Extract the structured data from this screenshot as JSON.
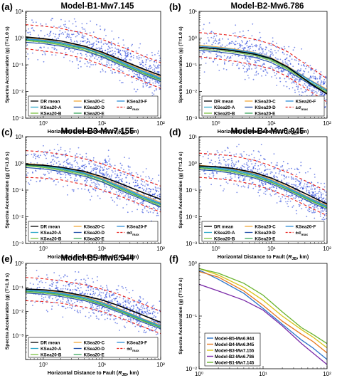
{
  "figure": {
    "panels": [
      {
        "tag": "(a)",
        "title": "Model-B1-Mw7.145"
      },
      {
        "tag": "(b)",
        "title": "Model-B2-Mw6.786"
      },
      {
        "tag": "(c)",
        "title": "Model-B3-Mw7.155"
      },
      {
        "tag": "(d)",
        "title": "Model-B4-Mw6.945"
      },
      {
        "tag": "(e)",
        "title": "Model-B5-Mw6.944"
      },
      {
        "tag": "(f)",
        "title": ""
      }
    ],
    "ylabel": "Spectra Acceleration (g) (T=1.0 s)",
    "xlabel_pre": "Horizontal Distance to Fault (",
    "xlabel_R": "R",
    "xlabel_sub": "JB",
    "xlabel_post": ", km)",
    "legend_entries": [
      "DR mean",
      "KSea20-C",
      "KSea20-F",
      "KSea20-A",
      "KSea20-D",
      "±σ",
      "KSea20-B",
      "KSea20-E"
    ],
    "sigma_sub": "max",
    "legend_f": [
      "Model-B5-Mw6.944",
      "Model-B4-Mw6.945",
      "Model-B3-Mw7.155",
      "Model-B2-Mw6.786",
      "Model-B1-Mw7.145"
    ],
    "y_ticks": [
      "10⁰",
      "10⁻¹",
      "10⁻²",
      "10⁻³"
    ],
    "y_ticks_abc": [
      "10¹",
      "10⁰",
      "10⁻¹",
      "10⁻²",
      "10⁻³"
    ],
    "x_ticks": [
      "10⁰",
      "10¹",
      "10²"
    ]
  },
  "colors": {
    "scatter": "#0b2bd6",
    "dr_mean": "#000000",
    "ksea_a": "#2da8c8",
    "ksea_b": "#7cc242",
    "ksea_c": "#f2a93b",
    "ksea_d": "#1f4fa8",
    "ksea_e": "#3aa85c",
    "ksea_f": "#2f8fd8",
    "sigma": "#e8201c",
    "f_b5": "#2b73c9",
    "f_b4": "#e8781c",
    "f_b3": "#d9c31a",
    "f_b2": "#7a2aa8",
    "f_b1": "#6ab32e"
  },
  "chart_data": [
    {
      "panel": "a",
      "type": "scatter",
      "title": "Model-B1-Mw7.145",
      "x_scale": "log",
      "y_scale": "log",
      "xlim": [
        0.5,
        100
      ],
      "ylim": [
        0.001,
        10
      ],
      "dr_mean": {
        "x": [
          0.5,
          1,
          2,
          5,
          10,
          20,
          50,
          100
        ],
        "y": [
          1.1,
          0.95,
          0.78,
          0.5,
          0.3,
          0.16,
          0.07,
          0.04
        ]
      },
      "sigma_upper": {
        "x": [
          0.5,
          1,
          2,
          5,
          10,
          20,
          50,
          100
        ],
        "y": [
          3.2,
          2.8,
          2.3,
          1.5,
          0.9,
          0.5,
          0.22,
          0.12
        ]
      },
      "sigma_lower": {
        "x": [
          0.5,
          1,
          2,
          5,
          10,
          20,
          50,
          100
        ],
        "y": [
          0.4,
          0.33,
          0.27,
          0.17,
          0.1,
          0.055,
          0.024,
          0.013
        ]
      },
      "gmm": [
        {
          "name": "KSea20-A",
          "y": [
            0.9,
            0.8,
            0.65,
            0.42,
            0.25,
            0.13,
            0.055,
            0.03
          ]
        },
        {
          "name": "KSea20-B",
          "y": [
            0.8,
            0.7,
            0.55,
            0.36,
            0.21,
            0.11,
            0.047,
            0.025
          ]
        },
        {
          "name": "KSea20-C",
          "y": [
            1.0,
            0.88,
            0.7,
            0.46,
            0.28,
            0.15,
            0.063,
            0.035
          ]
        },
        {
          "name": "KSea20-D",
          "y": [
            0.7,
            0.62,
            0.5,
            0.33,
            0.2,
            0.1,
            0.043,
            0.023
          ]
        },
        {
          "name": "KSea20-E",
          "y": [
            0.85,
            0.75,
            0.6,
            0.4,
            0.24,
            0.12,
            0.05,
            0.028
          ]
        },
        {
          "name": "KSea20-F",
          "y": [
            0.95,
            0.84,
            0.68,
            0.44,
            0.26,
            0.14,
            0.058,
            0.032
          ]
        }
      ]
    },
    {
      "panel": "b",
      "type": "scatter",
      "title": "Model-B2-Mw6.786",
      "x_scale": "log",
      "y_scale": "log",
      "xlim": [
        0.5,
        100
      ],
      "ylim": [
        0.001,
        10
      ],
      "dr_mean": {
        "x": [
          0.5,
          1,
          2,
          5,
          10,
          20,
          50,
          100
        ],
        "y": [
          0.45,
          0.4,
          0.34,
          0.25,
          0.17,
          0.08,
          0.02,
          0.008
        ]
      },
      "sigma_upper": {
        "x": [
          0.5,
          1,
          2,
          5,
          10,
          20,
          50,
          100
        ],
        "y": [
          1.6,
          1.45,
          1.25,
          0.9,
          0.6,
          0.3,
          0.08,
          0.03
        ]
      },
      "sigma_lower": {
        "x": [
          0.5,
          1,
          2,
          5,
          10,
          20,
          50,
          100
        ],
        "y": [
          0.2,
          0.17,
          0.14,
          0.1,
          0.07,
          0.035,
          0.01,
          0.004
        ]
      },
      "gmm": [
        {
          "name": "KSea20-A",
          "y": [
            0.5,
            0.44,
            0.37,
            0.27,
            0.17,
            0.08,
            0.025,
            0.011
          ]
        },
        {
          "name": "KSea20-B",
          "y": [
            0.4,
            0.35,
            0.3,
            0.22,
            0.14,
            0.065,
            0.02,
            0.009
          ]
        },
        {
          "name": "KSea20-C",
          "y": [
            0.55,
            0.48,
            0.4,
            0.29,
            0.18,
            0.085,
            0.027,
            0.012
          ]
        },
        {
          "name": "KSea20-D",
          "y": [
            0.35,
            0.31,
            0.26,
            0.19,
            0.12,
            0.058,
            0.018,
            0.008
          ]
        },
        {
          "name": "KSea20-E",
          "y": [
            0.45,
            0.4,
            0.33,
            0.24,
            0.155,
            0.072,
            0.022,
            0.01
          ]
        },
        {
          "name": "KSea20-F",
          "y": [
            0.5,
            0.45,
            0.38,
            0.28,
            0.175,
            0.082,
            0.026,
            0.011
          ]
        }
      ]
    },
    {
      "panel": "c",
      "type": "scatter",
      "title": "Model-B3-Mw7.155",
      "x_scale": "log",
      "y_scale": "log",
      "xlim": [
        0.5,
        100
      ],
      "ylim": [
        0.001,
        10
      ],
      "dr_mean": {
        "x": [
          0.5,
          1,
          2,
          5,
          10,
          20,
          50,
          100
        ],
        "y": [
          0.9,
          0.85,
          0.72,
          0.5,
          0.32,
          0.18,
          0.08,
          0.045
        ]
      },
      "sigma_upper": {
        "x": [
          0.5,
          1,
          2,
          5,
          10,
          20,
          50,
          100
        ],
        "y": [
          3.0,
          2.7,
          2.2,
          1.5,
          0.95,
          0.55,
          0.25,
          0.14
        ]
      },
      "sigma_lower": {
        "x": [
          0.5,
          1,
          2,
          5,
          10,
          20,
          50,
          100
        ],
        "y": [
          0.3,
          0.28,
          0.24,
          0.16,
          0.1,
          0.06,
          0.027,
          0.015
        ]
      },
      "gmm": [
        {
          "name": "KSea20-A",
          "y": [
            0.9,
            0.8,
            0.65,
            0.42,
            0.25,
            0.13,
            0.055,
            0.03
          ]
        },
        {
          "name": "KSea20-B",
          "y": [
            0.8,
            0.7,
            0.55,
            0.36,
            0.21,
            0.11,
            0.047,
            0.025
          ]
        },
        {
          "name": "KSea20-C",
          "y": [
            1.0,
            0.88,
            0.7,
            0.46,
            0.28,
            0.15,
            0.063,
            0.035
          ]
        },
        {
          "name": "KSea20-D",
          "y": [
            0.7,
            0.62,
            0.5,
            0.33,
            0.2,
            0.1,
            0.043,
            0.023
          ]
        },
        {
          "name": "KSea20-E",
          "y": [
            0.85,
            0.75,
            0.6,
            0.4,
            0.24,
            0.12,
            0.05,
            0.028
          ]
        },
        {
          "name": "KSea20-F",
          "y": [
            0.95,
            0.84,
            0.68,
            0.44,
            0.26,
            0.14,
            0.058,
            0.032
          ]
        }
      ]
    },
    {
      "panel": "d",
      "type": "scatter",
      "title": "Model-B4-Mw6.945",
      "x_scale": "log",
      "y_scale": "log",
      "xlim": [
        0.5,
        100
      ],
      "ylim": [
        0.001,
        10
      ],
      "dr_mean": {
        "x": [
          0.5,
          1,
          2,
          5,
          10,
          20,
          50,
          100
        ],
        "y": [
          0.8,
          0.75,
          0.65,
          0.45,
          0.28,
          0.15,
          0.06,
          0.03
        ]
      },
      "sigma_upper": {
        "x": [
          0.5,
          1,
          2,
          5,
          10,
          20,
          50,
          100
        ],
        "y": [
          2.4,
          2.2,
          1.9,
          1.3,
          0.8,
          0.45,
          0.18,
          0.09
        ]
      },
      "sigma_lower": {
        "x": [
          0.5,
          1,
          2,
          5,
          10,
          20,
          50,
          100
        ],
        "y": [
          0.3,
          0.27,
          0.23,
          0.16,
          0.1,
          0.055,
          0.022,
          0.011
        ]
      },
      "gmm": [
        {
          "name": "KSea20-A",
          "y": [
            0.75,
            0.67,
            0.55,
            0.37,
            0.22,
            0.115,
            0.045,
            0.024
          ]
        },
        {
          "name": "KSea20-B",
          "y": [
            0.65,
            0.58,
            0.47,
            0.31,
            0.19,
            0.1,
            0.039,
            0.021
          ]
        },
        {
          "name": "KSea20-C",
          "y": [
            0.85,
            0.75,
            0.62,
            0.41,
            0.25,
            0.13,
            0.05,
            0.027
          ]
        },
        {
          "name": "KSea20-D",
          "y": [
            0.58,
            0.52,
            0.42,
            0.28,
            0.17,
            0.09,
            0.035,
            0.019
          ]
        },
        {
          "name": "KSea20-E",
          "y": [
            0.7,
            0.62,
            0.51,
            0.34,
            0.2,
            0.105,
            0.042,
            0.022
          ]
        },
        {
          "name": "KSea20-F",
          "y": [
            0.8,
            0.71,
            0.58,
            0.39,
            0.23,
            0.12,
            0.048,
            0.025
          ]
        }
      ]
    },
    {
      "panel": "e",
      "type": "scatter",
      "title": "Model-B5-Mw6.944",
      "x_scale": "log",
      "y_scale": "log",
      "xlim": [
        0.5,
        100
      ],
      "ylim": [
        0.001,
        10
      ],
      "dr_mean": {
        "x": [
          0.5,
          1,
          2,
          5,
          10,
          20,
          50,
          100
        ],
        "y": [
          0.85,
          0.8,
          0.68,
          0.45,
          0.3,
          0.17,
          0.07,
          0.035
        ]
      },
      "sigma_upper": {
        "x": [
          0.5,
          1,
          2,
          5,
          10,
          20,
          50,
          100
        ],
        "y": [
          2.6,
          2.3,
          1.9,
          1.3,
          0.85,
          0.5,
          0.2,
          0.1
        ]
      },
      "sigma_lower": {
        "x": [
          0.5,
          1,
          2,
          5,
          10,
          20,
          50,
          100
        ],
        "y": [
          0.28,
          0.26,
          0.22,
          0.15,
          0.1,
          0.055,
          0.023,
          0.012
        ]
      },
      "gmm": [
        {
          "name": "KSea20-A",
          "y": [
            0.75,
            0.67,
            0.55,
            0.37,
            0.22,
            0.115,
            0.045,
            0.024
          ]
        },
        {
          "name": "KSea20-B",
          "y": [
            0.65,
            0.58,
            0.47,
            0.31,
            0.19,
            0.1,
            0.039,
            0.021
          ]
        },
        {
          "name": "KSea20-C",
          "y": [
            0.85,
            0.75,
            0.62,
            0.41,
            0.25,
            0.13,
            0.05,
            0.027
          ]
        },
        {
          "name": "KSea20-D",
          "y": [
            0.58,
            0.52,
            0.42,
            0.28,
            0.17,
            0.09,
            0.035,
            0.019
          ]
        },
        {
          "name": "KSea20-E",
          "y": [
            0.7,
            0.62,
            0.51,
            0.34,
            0.2,
            0.105,
            0.042,
            0.022
          ]
        },
        {
          "name": "KSea20-F",
          "y": [
            0.8,
            0.71,
            0.58,
            0.39,
            0.23,
            0.12,
            0.048,
            0.025
          ]
        }
      ]
    },
    {
      "panel": "f",
      "type": "line",
      "x_scale": "log",
      "y_scale": "log",
      "xlim": [
        1,
        100
      ],
      "ylim": [
        0.01,
        1
      ],
      "series": [
        {
          "name": "Model-B5-Mw6.944",
          "x": [
            1,
            2,
            5,
            10,
            20,
            40,
            60,
            100
          ],
          "y": [
            0.75,
            0.5,
            0.27,
            0.14,
            0.07,
            0.035,
            0.025,
            0.015
          ]
        },
        {
          "name": "Model-B4-Mw6.945",
          "x": [
            1,
            2,
            5,
            10,
            20,
            40,
            60,
            100
          ],
          "y": [
            0.7,
            0.55,
            0.3,
            0.16,
            0.08,
            0.045,
            0.033,
            0.02
          ]
        },
        {
          "name": "Model-B3-Mw7.155",
          "x": [
            1,
            2,
            5,
            10,
            20,
            40,
            60,
            100
          ],
          "y": [
            0.8,
            0.6,
            0.35,
            0.2,
            0.1,
            0.055,
            0.04,
            0.025
          ]
        },
        {
          "name": "Model-B2-Mw6.786",
          "x": [
            1,
            2,
            5,
            10,
            20,
            40,
            60,
            100
          ],
          "y": [
            0.4,
            0.3,
            0.2,
            0.13,
            0.065,
            0.03,
            0.02,
            0.012
          ]
        },
        {
          "name": "Model-B1-Mw7.145",
          "x": [
            1,
            2,
            5,
            10,
            20,
            40,
            60,
            100
          ],
          "y": [
            0.8,
            0.65,
            0.42,
            0.25,
            0.12,
            0.06,
            0.045,
            0.03
          ]
        }
      ]
    }
  ]
}
